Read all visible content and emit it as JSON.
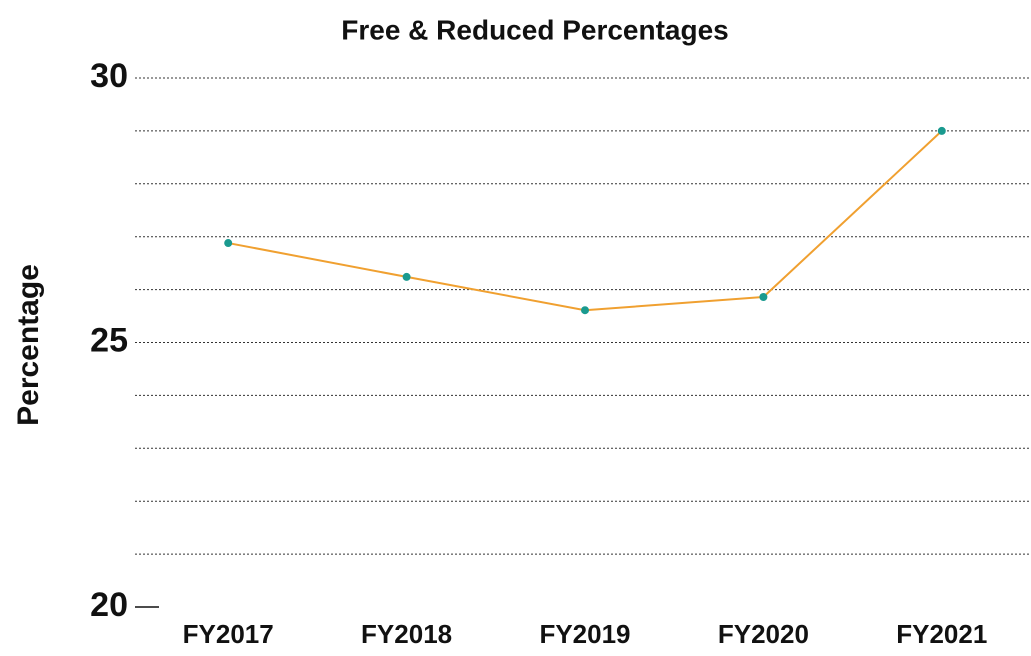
{
  "chart_data": {
    "type": "line",
    "title": "Free & Reduced Percentages",
    "y_label": "Percentage",
    "categories": [
      "FY2017",
      "FY2018",
      "FY2019",
      "FY2020",
      "FY2021"
    ],
    "series": [
      {
        "color": "#f0a030",
        "marker_color": "#1a9a8f",
        "values": [
          26.88,
          26.24,
          25.61,
          25.86,
          29.0
        ]
      }
    ],
    "ylim": [
      20,
      30
    ],
    "yticks": [
      20,
      25,
      30
    ],
    "minor_yticks": [
      21,
      22,
      23,
      24,
      26,
      27,
      28,
      29
    ],
    "grid": true
  }
}
